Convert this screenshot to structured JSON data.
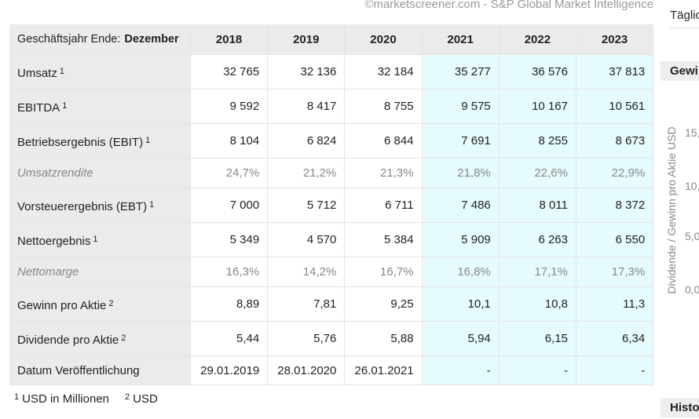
{
  "source": "©marketscreener.com - S&P Global Market Intelligence",
  "table": {
    "header": {
      "label": "Geschäftsjahr Ende:",
      "label_bold": "Dezember",
      "years": [
        "2018",
        "2019",
        "2020",
        "2021",
        "2022",
        "2023"
      ],
      "forecast": [
        false,
        false,
        false,
        true,
        true,
        true
      ]
    },
    "rows": [
      {
        "label": "Umsatz",
        "note": "1",
        "values": [
          "32 765",
          "32 136",
          "32 184",
          "35 277",
          "36 576",
          "37 813"
        ]
      },
      {
        "label": "EBITDA",
        "note": "1",
        "values": [
          "9 592",
          "8 417",
          "8 755",
          "9 575",
          "10 167",
          "10 561"
        ]
      },
      {
        "label": "Betriebsergebnis (EBIT)",
        "note": "1",
        "values": [
          "8 104",
          "6 824",
          "6 844",
          "7 691",
          "8 255",
          "8 673"
        ]
      },
      {
        "label": "Umsatzrendite",
        "italic": true,
        "values": [
          "24,7%",
          "21,2%",
          "21,3%",
          "21,8%",
          "22,6%",
          "22,9%"
        ]
      },
      {
        "label": "Vorsteuerergebnis (EBT)",
        "note": "1",
        "values": [
          "7 000",
          "5 712",
          "6 711",
          "7 486",
          "8 011",
          "8 372"
        ]
      },
      {
        "label": "Nettoergebnis",
        "note": "1",
        "values": [
          "5 349",
          "4 570",
          "5 384",
          "5 909",
          "6 263",
          "6 550"
        ]
      },
      {
        "label": "Nettomarge",
        "italic": true,
        "values": [
          "16,3%",
          "14,2%",
          "16,7%",
          "16,8%",
          "17,1%",
          "17,3%"
        ]
      },
      {
        "label": "Gewinn pro Aktie",
        "note": "2",
        "values": [
          "8,89",
          "7,81",
          "9,25",
          "10,1",
          "10,8",
          "11,3"
        ]
      },
      {
        "label": "Dividende pro Aktie",
        "note": "2",
        "values": [
          "5,44",
          "5,76",
          "5,88",
          "5,94",
          "6,15",
          "6,34"
        ]
      },
      {
        "label": "Datum Veröffentlichung",
        "values": [
          "29.01.2019",
          "28.01.2020",
          "26.01.2021",
          "-",
          "-",
          "-"
        ]
      }
    ],
    "footnotes": [
      {
        "mark": "1",
        "text": "USD in Millionen"
      },
      {
        "mark": "2",
        "text": "USD"
      }
    ]
  },
  "side_panel": {
    "tab": "Täglic",
    "chart_title": "Gewi",
    "y_axis_label": "Dividende / Gewinn pro Aktie USD",
    "yticks": [
      "15,",
      "10,",
      "5,0",
      "0,0"
    ],
    "history_title": "Histo"
  }
}
